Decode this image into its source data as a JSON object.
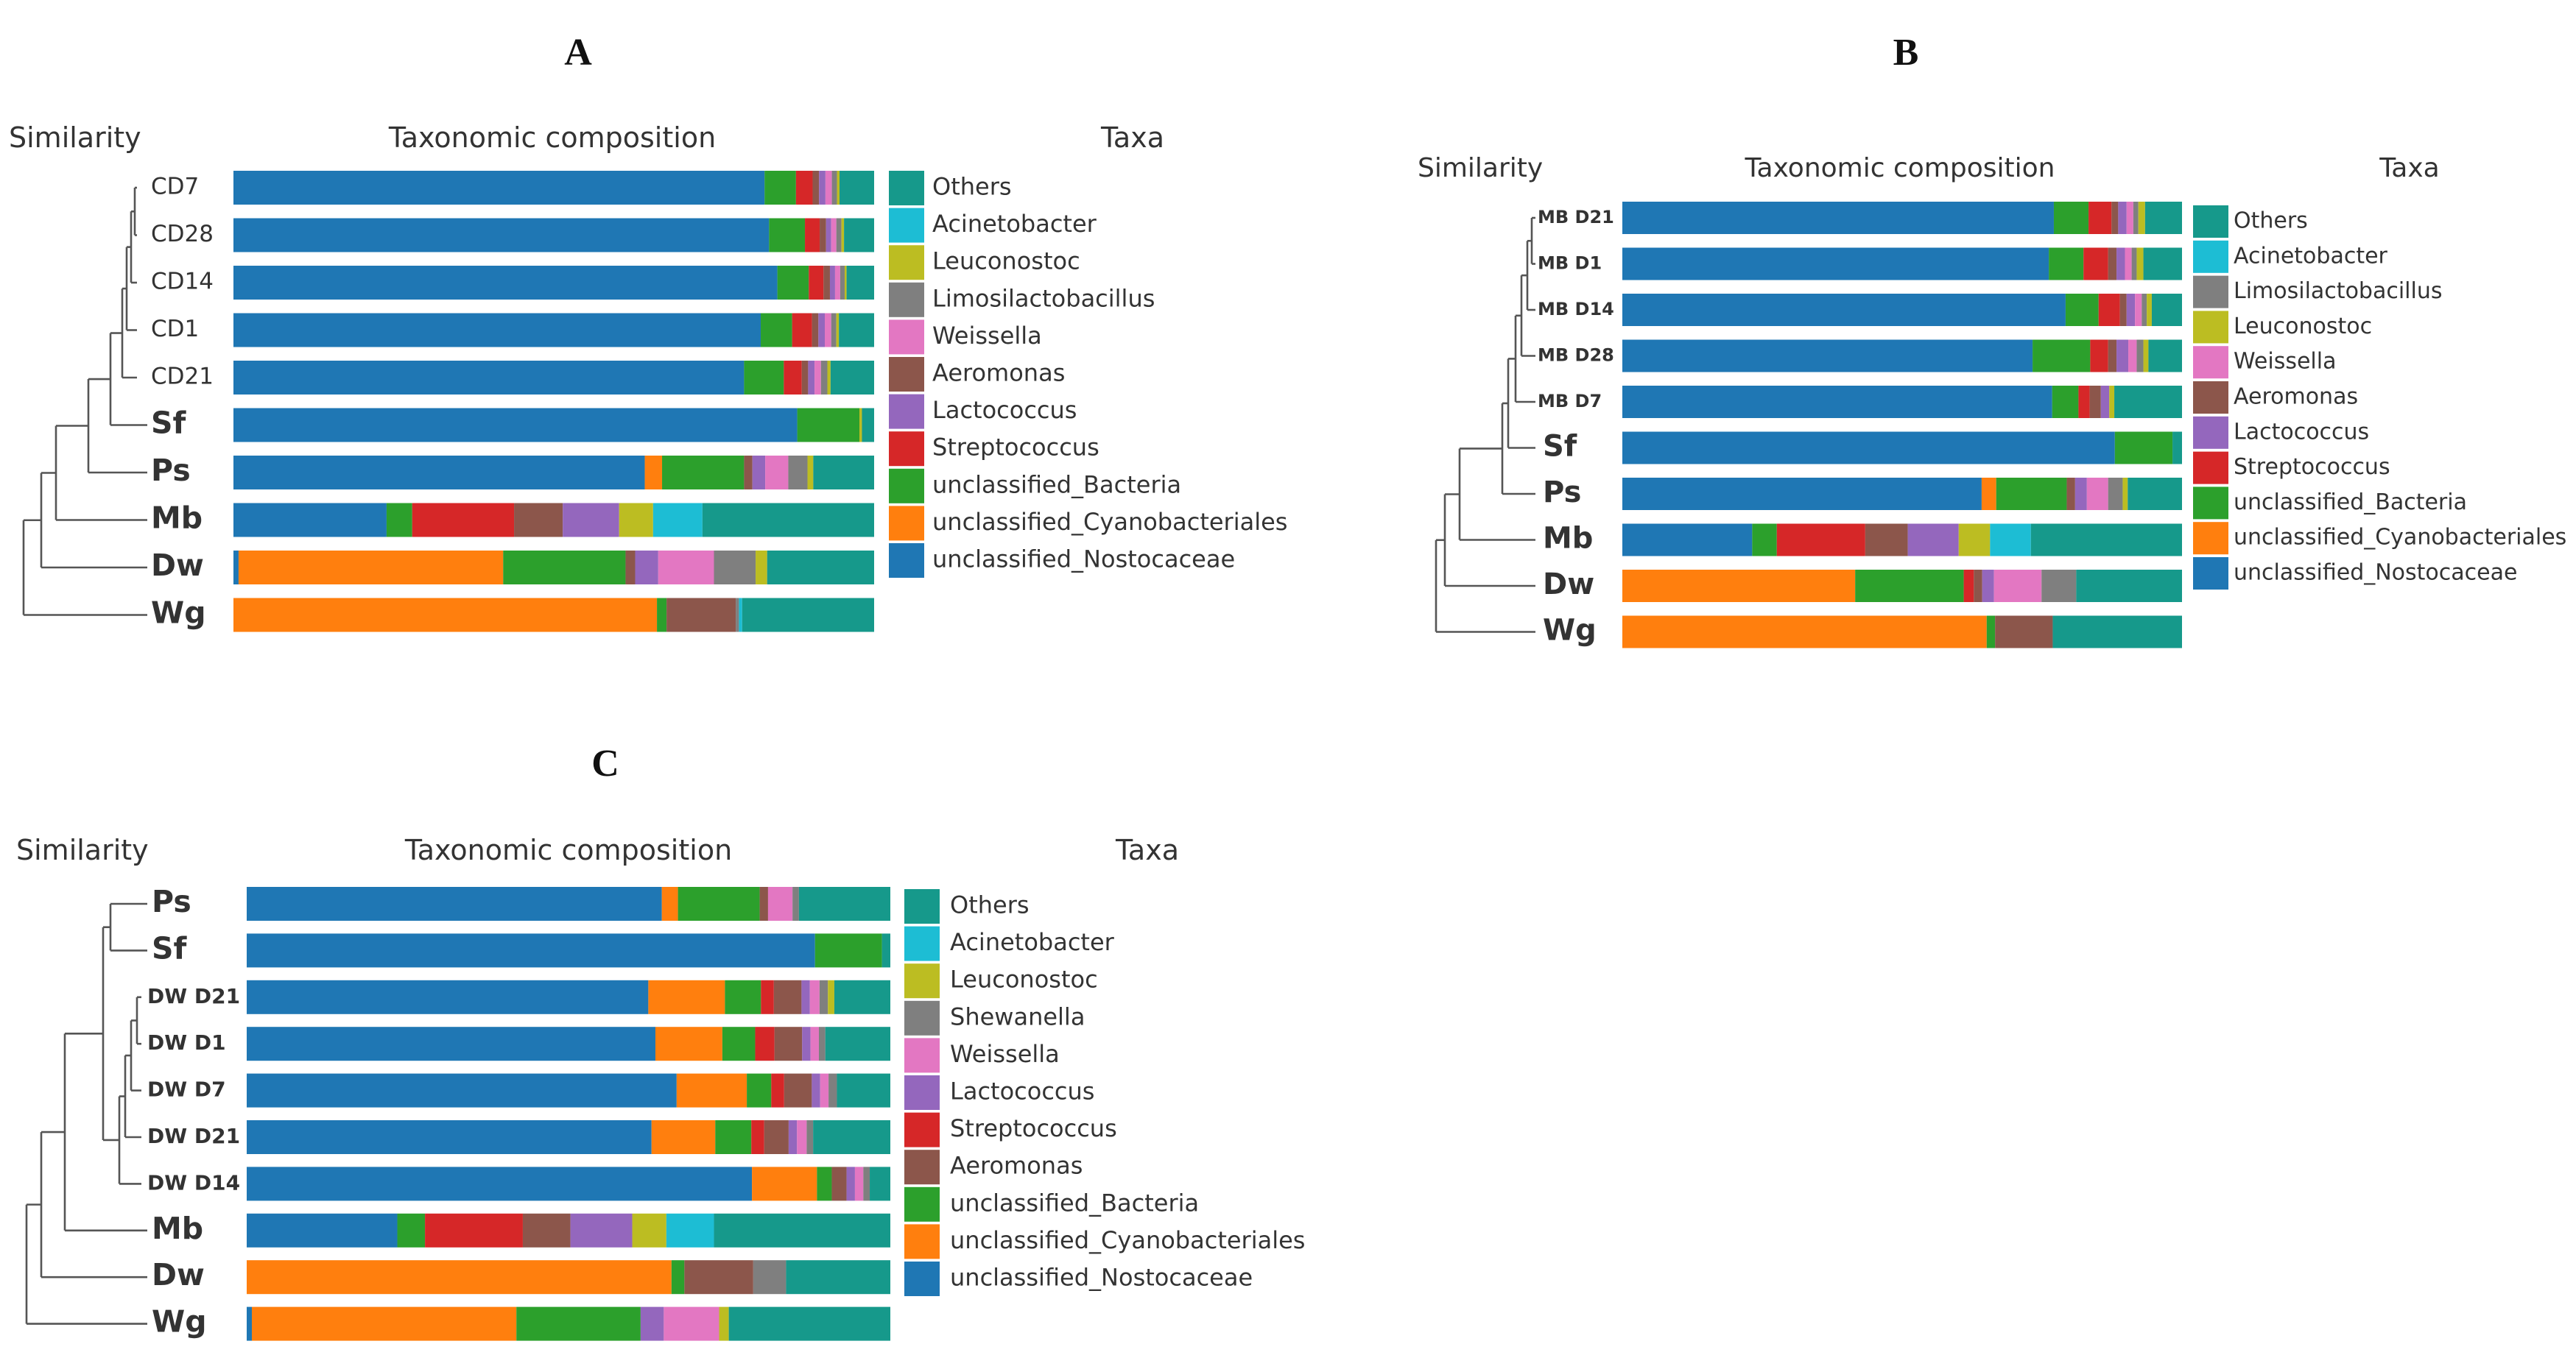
{
  "colors": {
    "Others": "#16998b",
    "Acinetobacter": "#1dbdd4",
    "Leuconostoc": "#bcbd22",
    "Limosilactobacillus": "#7f7f7f",
    "Shewanella": "#7f7f7f",
    "Weissella": "#e377c2",
    "Aeromonas": "#8c564b",
    "Lactococcus": "#9467bd",
    "Streptococcus": "#d62728",
    "unclassified_Bacteria": "#2ca02c",
    "unclassified_Cyanobacteriales": "#ff7f0e",
    "unclassified_Nostocaceae": "#1f77b4"
  },
  "chart_data": [
    {
      "type": "bar",
      "panel_label": "A",
      "dendrogram_title": "Similarity",
      "bars_title": "Taxonomic composition",
      "legend_title": "Taxa",
      "legend": [
        "Others",
        "Acinetobacter",
        "Leuconostoc",
        "Limosilactobacillus",
        "Weissella",
        "Aeromonas",
        "Lactococcus",
        "Streptococcus",
        "unclassified_Bacteria",
        "unclassified_Cyanobacteriales",
        "unclassified_Nostocaceae"
      ],
      "samples": [
        {
          "label": "CD7",
          "style": "small",
          "composition": {
            "unclassified_Nostocaceae": 82.9,
            "unclassified_Bacteria": 4.9,
            "Streptococcus": 2.6,
            "Aeromonas": 1.0,
            "Lactococcus": 1.0,
            "Weissella": 1.0,
            "Limosilactobacillus": 0.8,
            "Leuconostoc": 0.4,
            "Others": 5.4
          }
        },
        {
          "label": "CD28",
          "style": "small",
          "composition": {
            "unclassified_Nostocaceae": 83.6,
            "unclassified_Bacteria": 5.6,
            "Streptococcus": 2.3,
            "Aeromonas": 1.0,
            "Lactococcus": 0.8,
            "Weissella": 0.8,
            "Limosilactobacillus": 0.8,
            "Leuconostoc": 0.4,
            "Others": 4.7
          }
        },
        {
          "label": "CD14",
          "style": "small",
          "composition": {
            "unclassified_Nostocaceae": 84.9,
            "unclassified_Bacteria": 4.9,
            "Streptococcus": 2.3,
            "Aeromonas": 1.0,
            "Lactococcus": 0.8,
            "Weissella": 0.8,
            "Limosilactobacillus": 0.7,
            "Leuconostoc": 0.3,
            "Others": 4.3
          }
        },
        {
          "label": "CD1",
          "style": "small",
          "composition": {
            "unclassified_Nostocaceae": 82.3,
            "unclassified_Bacteria": 4.9,
            "Streptococcus": 3.1,
            "Aeromonas": 1.0,
            "Lactococcus": 1.0,
            "Weissella": 1.0,
            "Limosilactobacillus": 0.8,
            "Leuconostoc": 0.4,
            "Others": 5.5
          }
        },
        {
          "label": "CD21",
          "style": "small",
          "composition": {
            "unclassified_Nostocaceae": 79.7,
            "unclassified_Bacteria": 6.2,
            "Streptococcus": 2.8,
            "Aeromonas": 1.0,
            "Lactococcus": 1.0,
            "Weissella": 1.0,
            "Limosilactobacillus": 1.0,
            "Leuconostoc": 0.5,
            "Others": 6.8
          }
        },
        {
          "label": "Sf",
          "style": "large",
          "composition": {
            "unclassified_Nostocaceae": 88.0,
            "unclassified_Bacteria": 9.7,
            "Leuconostoc": 0.4,
            "Others": 1.9
          }
        },
        {
          "label": "Ps",
          "style": "large",
          "composition": {
            "unclassified_Nostocaceae": 64.2,
            "unclassified_Cyanobacteriales": 2.7,
            "unclassified_Bacteria": 12.8,
            "Lactococcus": 2.0,
            "Weissella": 3.6,
            "Aeromonas": 1.3,
            "Limosilactobacillus": 3.0,
            "Leuconostoc": 0.9,
            "Others": 9.5
          }
        },
        {
          "label": "Mb",
          "style": "large",
          "composition": {
            "unclassified_Nostocaceae": 23.9,
            "unclassified_Bacteria": 4.0,
            "Streptococcus": 15.9,
            "Lactococcus": 8.8,
            "Aeromonas": 7.6,
            "Leuconostoc": 5.3,
            "Acinetobacter": 7.7,
            "Others": 26.8
          }
        },
        {
          "label": "Dw",
          "style": "large",
          "composition": {
            "unclassified_Nostocaceae": 0.8,
            "unclassified_Cyanobacteriales": 41.3,
            "unclassified_Bacteria": 19.1,
            "Aeromonas": 1.5,
            "Lactococcus": 3.6,
            "Weissella": 8.7,
            "Limosilactobacillus": 6.5,
            "Leuconostoc": 1.8,
            "Others": 16.7
          }
        },
        {
          "label": "Wg",
          "style": "large",
          "composition": {
            "unclassified_Cyanobacteriales": 66.1,
            "unclassified_Bacteria": 1.5,
            "Aeromonas": 10.8,
            "Limosilactobacillus": 0.5,
            "Acinetobacter": 0.5,
            "Others": 20.6
          }
        }
      ]
    },
    {
      "type": "bar",
      "panel_label": "B",
      "dendrogram_title": "Similarity",
      "bars_title": "Taxonomic composition",
      "legend_title": "Taxa",
      "legend": [
        "Others",
        "Acinetobacter",
        "Limosilactobacillus",
        "Leuconostoc",
        "Weissella",
        "Aeromonas",
        "Lactococcus",
        "Streptococcus",
        "unclassified_Bacteria",
        "unclassified_Cyanobacteriales",
        "unclassified_Nostocaceae"
      ],
      "samples": [
        {
          "label": "MB D21",
          "style": "small",
          "composition": {
            "unclassified_Nostocaceae": 77.1,
            "unclassified_Bacteria": 6.2,
            "Streptococcus": 4.1,
            "Aeromonas": 1.2,
            "Lactococcus": 1.5,
            "Weissella": 1.2,
            "Limosilactobacillus": 0.9,
            "Leuconostoc": 1.2,
            "Others": 6.6
          }
        },
        {
          "label": "MB D1",
          "style": "small",
          "composition": {
            "unclassified_Nostocaceae": 76.2,
            "unclassified_Bacteria": 6.2,
            "Streptococcus": 4.4,
            "Aeromonas": 1.5,
            "Lactococcus": 1.5,
            "Weissella": 1.2,
            "Limosilactobacillus": 0.9,
            "Leuconostoc": 1.2,
            "Others": 6.9
          }
        },
        {
          "label": "MB D14",
          "style": "small",
          "composition": {
            "unclassified_Nostocaceae": 79.2,
            "unclassified_Bacteria": 5.9,
            "Streptococcus": 3.8,
            "Aeromonas": 1.2,
            "Lactococcus": 1.5,
            "Weissella": 1.2,
            "Limosilactobacillus": 0.9,
            "Leuconostoc": 0.9,
            "Others": 5.4
          }
        },
        {
          "label": "MB D28",
          "style": "small",
          "composition": {
            "unclassified_Nostocaceae": 73.3,
            "unclassified_Bacteria": 10.3,
            "Streptococcus": 3.2,
            "Aeromonas": 1.5,
            "Lactococcus": 2.1,
            "Weissella": 1.5,
            "Limosilactobacillus": 1.2,
            "Leuconostoc": 0.9,
            "Others": 6.0
          }
        },
        {
          "label": "MB D7",
          "style": "small",
          "composition": {
            "unclassified_Nostocaceae": 76.8,
            "unclassified_Bacteria": 4.7,
            "Streptococcus": 2.0,
            "Aeromonas": 2.0,
            "Lactococcus": 1.5,
            "Leuconostoc": 0.9,
            "Others": 12.1
          }
        },
        {
          "label": "Sf",
          "style": "large",
          "composition": {
            "unclassified_Nostocaceae": 88.0,
            "unclassified_Bacteria": 10.3,
            "Others": 1.7
          }
        },
        {
          "label": "Ps",
          "style": "large",
          "composition": {
            "unclassified_Nostocaceae": 64.2,
            "unclassified_Cyanobacteriales": 2.6,
            "unclassified_Bacteria": 12.6,
            "Lactococcus": 2.1,
            "Weissella": 3.8,
            "Aeromonas": 1.5,
            "Limosilactobacillus": 2.6,
            "Leuconostoc": 0.9,
            "Others": 9.7
          }
        },
        {
          "label": "Mb",
          "style": "large",
          "composition": {
            "unclassified_Nostocaceae": 23.2,
            "unclassified_Bacteria": 4.4,
            "Streptococcus": 15.8,
            "Lactococcus": 9.1,
            "Aeromonas": 7.6,
            "Leuconostoc": 5.6,
            "Acinetobacter": 7.3,
            "Others": 27.0
          }
        },
        {
          "label": "Dw",
          "style": "large",
          "composition": {
            "unclassified_Cyanobacteriales": 41.6,
            "unclassified_Bacteria": 19.4,
            "Lactococcus": 2.1,
            "Aeromonas": 1.5,
            "Weissella": 8.5,
            "Streptococcus": 1.8,
            "Limosilactobacillus": 6.2,
            "Others": 18.9
          }
        },
        {
          "label": "Wg",
          "style": "large",
          "composition": {
            "unclassified_Cyanobacteriales": 65.1,
            "unclassified_Bacteria": 1.5,
            "Aeromonas": 10.3,
            "Others": 23.1
          }
        }
      ]
    },
    {
      "type": "bar",
      "panel_label": "C",
      "dendrogram_title": "Similarity",
      "bars_title": "Taxonomic composition",
      "legend_title": "Taxa",
      "legend": [
        "Others",
        "Acinetobacter",
        "Leuconostoc",
        "Shewanella",
        "Weissella",
        "Lactococcus",
        "Streptococcus",
        "Aeromonas",
        "unclassified_Bacteria",
        "unclassified_Cyanobacteriales",
        "unclassified_Nostocaceae"
      ],
      "samples": [
        {
          "label": "Ps",
          "style": "large",
          "composition": {
            "unclassified_Nostocaceae": 64.5,
            "unclassified_Cyanobacteriales": 2.5,
            "unclassified_Bacteria": 12.7,
            "Aeromonas": 1.3,
            "Weissella": 3.8,
            "Shewanella": 1.0,
            "Others": 14.2
          }
        },
        {
          "label": "Sf",
          "style": "large",
          "composition": {
            "unclassified_Nostocaceae": 88.3,
            "unclassified_Bacteria": 10.4,
            "Others": 1.3
          }
        },
        {
          "label": "DW D21",
          "style": "small",
          "composition": {
            "unclassified_Nostocaceae": 62.4,
            "unclassified_Cyanobacteriales": 11.9,
            "unclassified_Bacteria": 5.6,
            "Aeromonas": 4.3,
            "Streptococcus": 2.0,
            "Lactococcus": 1.3,
            "Weissella": 1.5,
            "Shewanella": 1.3,
            "Leuconostoc": 1.0,
            "Others": 8.7
          }
        },
        {
          "label": "DW D1",
          "style": "small",
          "composition": {
            "unclassified_Nostocaceae": 63.5,
            "unclassified_Cyanobacteriales": 10.4,
            "unclassified_Bacteria": 5.1,
            "Aeromonas": 4.3,
            "Streptococcus": 3.0,
            "Lactococcus": 1.3,
            "Weissella": 1.3,
            "Shewanella": 1.0,
            "Others": 10.1
          }
        },
        {
          "label": "DW D7",
          "style": "small",
          "composition": {
            "unclassified_Nostocaceae": 66.8,
            "unclassified_Cyanobacteriales": 10.9,
            "unclassified_Bacteria": 3.8,
            "Aeromonas": 4.3,
            "Streptococcus": 2.0,
            "Lactococcus": 1.3,
            "Weissella": 1.3,
            "Shewanella": 1.3,
            "Others": 8.3
          }
        },
        {
          "label": "DW D21",
          "style": "small",
          "composition": {
            "unclassified_Nostocaceae": 62.9,
            "unclassified_Cyanobacteriales": 9.9,
            "unclassified_Bacteria": 5.6,
            "Aeromonas": 3.8,
            "Streptococcus": 2.0,
            "Lactococcus": 1.3,
            "Weissella": 1.5,
            "Shewanella": 1.0,
            "Others": 12.0
          }
        },
        {
          "label": "DW D14",
          "style": "small",
          "composition": {
            "unclassified_Nostocaceae": 78.5,
            "unclassified_Cyanobacteriales": 10.1,
            "unclassified_Bacteria": 2.3,
            "Aeromonas": 2.3,
            "Lactococcus": 1.3,
            "Weissella": 1.3,
            "Shewanella": 1.0,
            "Others": 3.2
          }
        },
        {
          "label": "Mb",
          "style": "large",
          "composition": {
            "unclassified_Nostocaceae": 23.4,
            "unclassified_Bacteria": 4.3,
            "Aeromonas": 7.4,
            "Streptococcus": 15.2,
            "Lactococcus": 9.6,
            "Leuconostoc": 5.3,
            "Acinetobacter": 7.4,
            "Others": 27.4
          }
        },
        {
          "label": "Dw",
          "style": "large",
          "composition": {
            "unclassified_Cyanobacteriales": 66.0,
            "unclassified_Bacteria": 2.0,
            "Aeromonas": 10.7,
            "Shewanella": 5.1,
            "Others": 16.2
          }
        },
        {
          "label": "Wg",
          "style": "large",
          "composition": {
            "unclassified_Nostocaceae": 0.8,
            "unclassified_Cyanobacteriales": 41.1,
            "unclassified_Bacteria": 19.3,
            "Lactococcus": 3.6,
            "Weissella": 8.6,
            "Leuconostoc": 1.5,
            "Others": 25.1
          }
        }
      ]
    }
  ]
}
